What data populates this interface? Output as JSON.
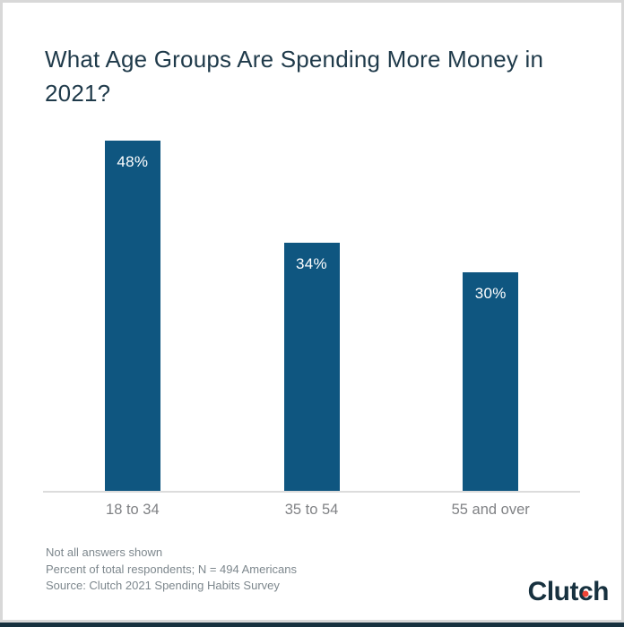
{
  "title": "What Age Groups Are Spending More Money in 2021?",
  "chart_data": {
    "type": "bar",
    "title": "What Age Groups Are Spending More Money in 2021?",
    "categories": [
      "18 to 34",
      "35 to 54",
      "55 and over"
    ],
    "values": [
      48,
      34,
      30
    ],
    "value_labels": [
      "48%",
      "34%",
      "30%"
    ],
    "xlabel": "",
    "ylabel": "",
    "ylim": [
      0,
      50
    ],
    "grid": false,
    "legend": false,
    "bar_color": "#0f5680",
    "baseline_color": "#dcdcdc",
    "value_label_color": "#ffffff",
    "category_label_color": "#808285"
  },
  "notes": {
    "line1": "Not all answers shown",
    "line2": "Percent of total respondents; N = 494 Americans",
    "line3": "Source: Clutch 2021 Spending Habits Survey"
  },
  "logo": {
    "text_before_dot": "Clut",
    "dotted_letter": "c",
    "text_after_dot": "h",
    "brand_color": "#17313f",
    "dot_color": "#ef4335"
  },
  "colors": {
    "frame_border": "#d8d8d8",
    "bottom_bar": "#17313f",
    "title_text": "#1f3a4a",
    "notes_text": "#7d878d"
  }
}
